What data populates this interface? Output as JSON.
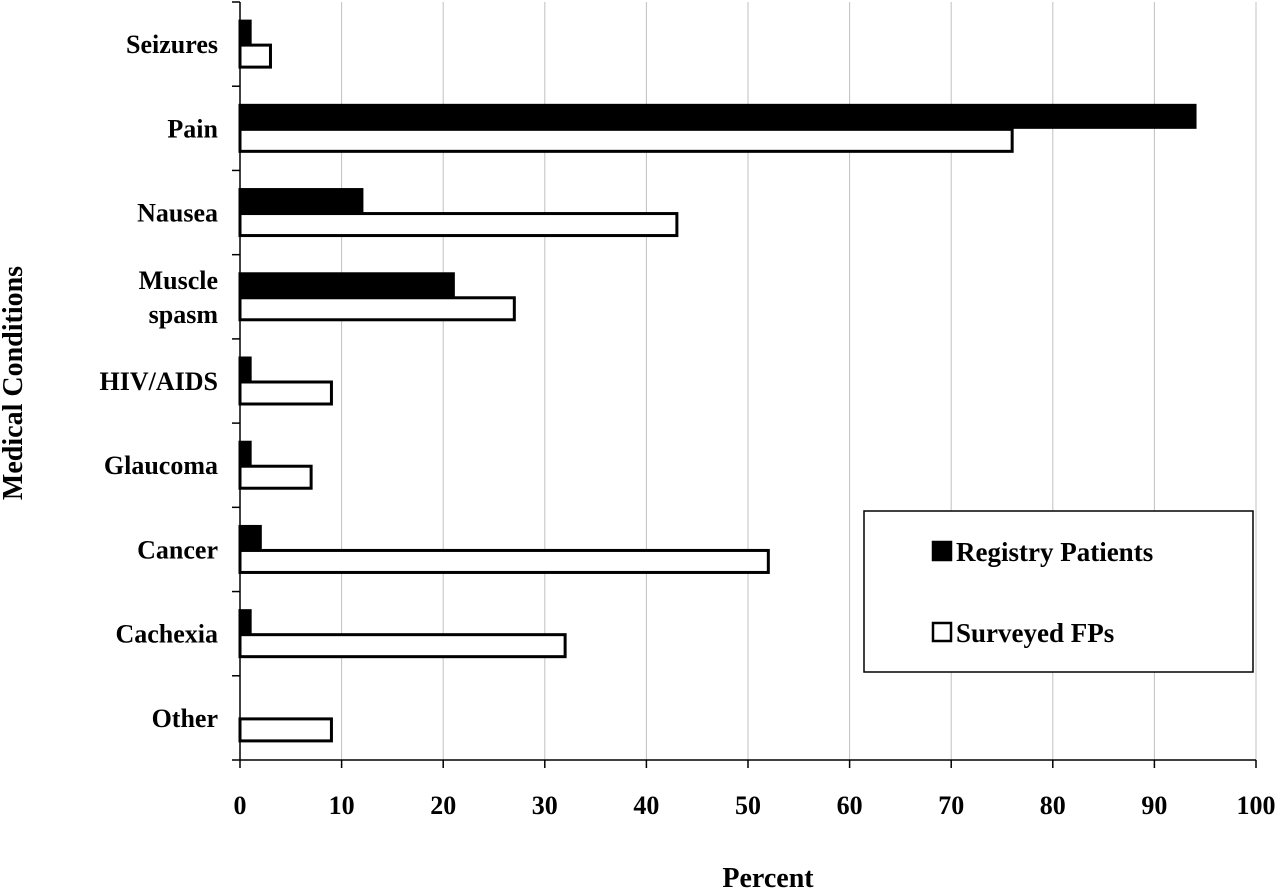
{
  "chart_data": {
    "type": "bar",
    "orientation": "horizontal",
    "categories": [
      "Seizures",
      "Pain",
      "Nausea",
      "Muscle spasm",
      "HIV/AIDS",
      "Glaucoma",
      "Cancer",
      "Cachexia",
      "Other"
    ],
    "category_lines": [
      [
        "Seizures"
      ],
      [
        "Pain"
      ],
      [
        "Nausea"
      ],
      [
        "Muscle",
        "spasm"
      ],
      [
        "HIV/AIDS"
      ],
      [
        "Glaucoma"
      ],
      [
        "Cancer"
      ],
      [
        "Cachexia"
      ],
      [
        "Other"
      ]
    ],
    "series": [
      {
        "name": "Registry Patients",
        "fill": "#000000",
        "values": [
          1,
          94,
          12,
          21,
          1,
          1,
          2,
          1,
          0
        ]
      },
      {
        "name": "Surveyed FPs",
        "fill": "#ffffff",
        "values": [
          3,
          76,
          43,
          27,
          9,
          7,
          52,
          32,
          9
        ]
      }
    ],
    "xlabel": "Percent",
    "ylabel": "Medical Conditions",
    "xlim": [
      0,
      100
    ],
    "xticks": [
      0,
      10,
      20,
      30,
      40,
      50,
      60,
      70,
      80,
      90,
      100
    ],
    "grid": "vertical",
    "legend": "right"
  },
  "colors": {
    "gridline": "#c0c0c0",
    "axis": "#000000",
    "bar_outline": "#000000"
  }
}
